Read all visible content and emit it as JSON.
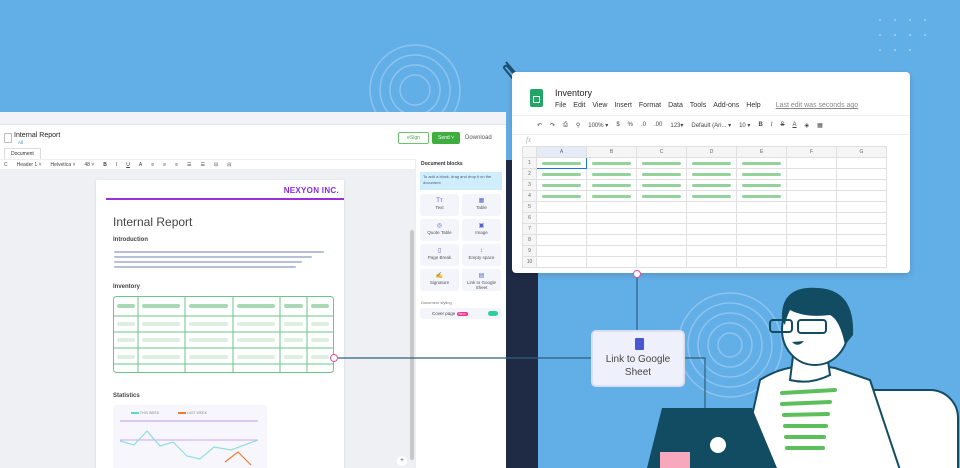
{
  "editor": {
    "doc_title": "Internal Report",
    "doc_sub": "All",
    "tab": "Document",
    "esign": "eSign",
    "send": "Send ˅",
    "download": "Download",
    "toolbar": [
      "C",
      "Header 1 ˅",
      "Helvetica ˅",
      "48 ˅",
      "B",
      "I",
      "U",
      "A",
      "≡",
      "≡",
      "≡",
      "☰",
      "☰",
      "⊟",
      "⊟"
    ]
  },
  "page": {
    "logo": "NEXYON INC.",
    "title": "Internal Report",
    "intro": "Introduction",
    "inventory": "Inventory",
    "statistics": "Statistics",
    "legend": [
      "THIS WEEK",
      "LAST WEEK"
    ]
  },
  "sidebar": {
    "title": "Document blocks",
    "hint": "To add a block, drag and drop it on the document",
    "blocks": [
      {
        "label": "Text",
        "icon": "text-icon"
      },
      {
        "label": "Table",
        "icon": "table-icon"
      },
      {
        "label": "Quote Table",
        "icon": "quote-icon"
      },
      {
        "label": "Image",
        "icon": "image-icon"
      },
      {
        "label": "Page Break",
        "icon": "page-break-icon"
      },
      {
        "label": "Empty space",
        "icon": "space-icon"
      },
      {
        "label": "Signature",
        "icon": "signature-icon"
      },
      {
        "label": "Link to Google Sheet",
        "icon": "sheet-icon"
      }
    ],
    "styling": "Document styling",
    "cover": "Cover page",
    "new_badge": "New",
    "cover_on": true
  },
  "sheet": {
    "title": "Inventory",
    "menus": [
      "File",
      "Edit",
      "View",
      "Insert",
      "Format",
      "Data",
      "Tools",
      "Add-ons",
      "Help"
    ],
    "last_edit": "Last edit was seconds ago",
    "toolbar": [
      "↶",
      "↷",
      "⎙",
      "⚲",
      "100% ▾",
      "$",
      "%",
      ".0",
      ".00",
      "123▾",
      "Default (Ari... ▾",
      "10 ▾",
      "B",
      "I",
      "S",
      "A"
    ],
    "fx": "fx",
    "columns": [
      "A",
      "B",
      "C",
      "D",
      "E",
      "F",
      "G"
    ],
    "rows": [
      "1",
      "2",
      "3",
      "4",
      "5",
      "6",
      "7",
      "8",
      "9",
      "10"
    ]
  },
  "link_box": {
    "label": "Link to Google Sheet"
  },
  "colors": {
    "background": "#62aee6",
    "green": "#3fae3f",
    "purple": "#9b30d6",
    "connector": "#2e5f7a"
  }
}
